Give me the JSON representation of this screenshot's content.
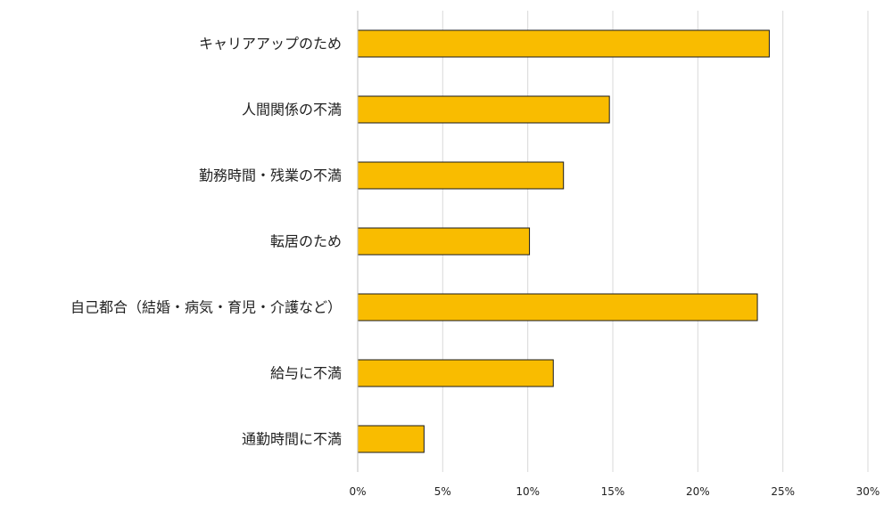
{
  "chart_data": {
    "type": "bar",
    "orientation": "horizontal",
    "categories": [
      "キャリアアップのため",
      "人間関係の不満",
      "勤務時間・残業の不満",
      "転居のため",
      "自己都合（結婚・病気・育児・介護など）",
      "給与に不満",
      "通勤時間に不満"
    ],
    "values": [
      24.2,
      14.8,
      12.1,
      10.1,
      23.5,
      11.5,
      3.9
    ],
    "xlim": [
      0,
      30
    ],
    "x_ticks": [
      0,
      5,
      10,
      15,
      20,
      25,
      30
    ],
    "x_tick_labels": [
      "0%",
      "5%",
      "10%",
      "15%",
      "20%",
      "25%",
      "30%"
    ],
    "title": "",
    "xlabel": "",
    "ylabel": "",
    "grid": "vertical",
    "legend": "none",
    "colors": {
      "bar_fill": "#F9BC00",
      "bar_stroke": "#1a1a1a",
      "grid": "#d9d9d9",
      "axis": "#bfbfbf"
    }
  }
}
